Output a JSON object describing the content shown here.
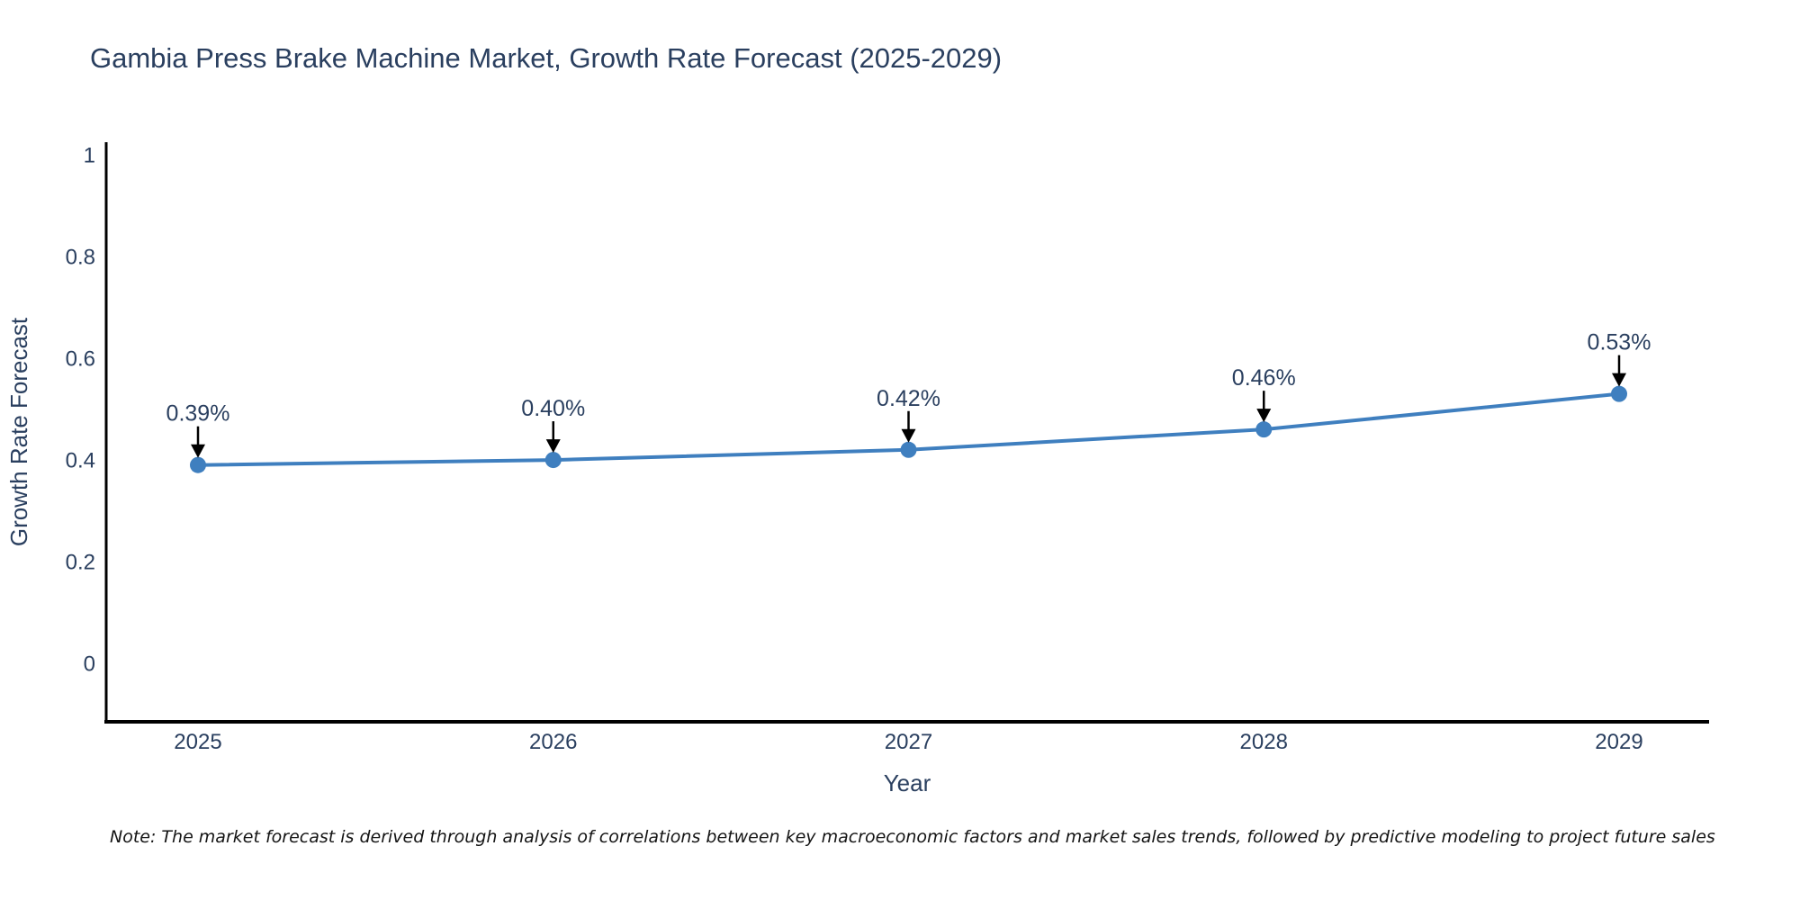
{
  "title": "Gambia Press Brake Machine Market, Growth Rate Forecast (2025-2029)",
  "note": "Note: The market forecast is derived through analysis of correlations between key macroeconomic factors and market sales trends, followed by predictive modeling to project future sales",
  "colors": {
    "title_text": "#2a3f5f",
    "tick_text": "#2a3f5f",
    "line": "#3f7fbf",
    "marker": "#3f7fbf",
    "axis_line": "#000000",
    "annotation_arrow": "#000000",
    "background": "#ffffff"
  },
  "chart_data": {
    "type": "line",
    "title": "Gambia Press Brake Machine Market, Growth Rate Forecast (2025-2029)",
    "xlabel": "Year",
    "ylabel": "Growth Rate Forecast",
    "categories": [
      "2025",
      "2026",
      "2027",
      "2028",
      "2029"
    ],
    "values": [
      0.39,
      0.4,
      0.42,
      0.46,
      0.53
    ],
    "point_labels": [
      "0.39%",
      "0.40%",
      "0.42%",
      "0.46%",
      "0.53%"
    ],
    "yticks": [
      0,
      0.2,
      0.4,
      0.6,
      0.8,
      1
    ],
    "ytick_labels": [
      "0",
      "0.2",
      "0.4",
      "0.6",
      "0.8",
      "1"
    ],
    "ylim": [
      -0.115,
      1.025
    ],
    "grid": false,
    "legend_position": "none",
    "annotation": "arrows pointing down from percentage labels to markers"
  }
}
